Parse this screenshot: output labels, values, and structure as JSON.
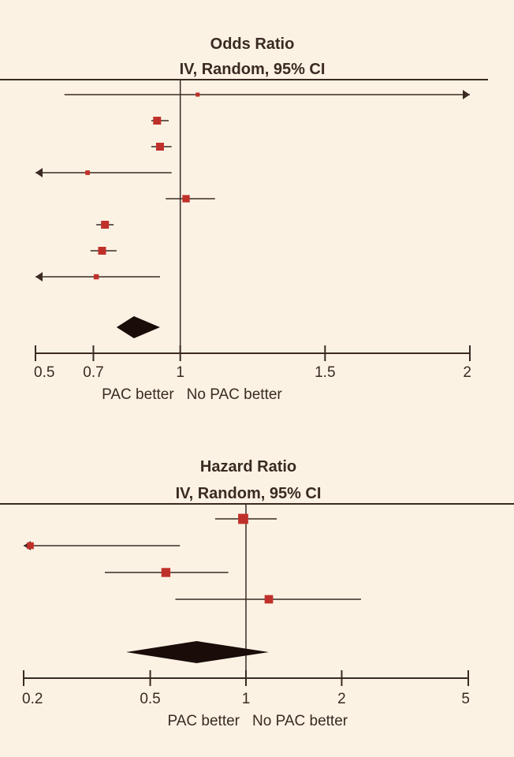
{
  "colors": {
    "background": "#fbf2e4",
    "ink": "#3a2a22",
    "marker": "#c0302a",
    "diamond": "#1a0c08"
  },
  "chart_data": [
    {
      "type": "forest",
      "scale": "linear",
      "title": "Odds Ratio",
      "subtitle": "IV, Random, 95% CI",
      "xlabel_left": "PAC better",
      "xlabel_right": "No PAC better",
      "xlim": [
        0.5,
        2
      ],
      "ticks": [
        0.5,
        0.7,
        1,
        1.5,
        2
      ],
      "tick_labels": [
        "0.5",
        "0.7",
        "1",
        "1.5",
        "2"
      ],
      "studies": [
        {
          "estimate": 1.06,
          "lower": 0.6,
          "upper": 2.0,
          "arrow_left": false,
          "arrow_right": true,
          "weight": 0.3
        },
        {
          "estimate": 0.92,
          "lower": 0.9,
          "upper": 0.96,
          "arrow_left": false,
          "arrow_right": false,
          "weight": 1.0
        },
        {
          "estimate": 0.93,
          "lower": 0.9,
          "upper": 0.97,
          "arrow_left": false,
          "arrow_right": false,
          "weight": 1.0
        },
        {
          "estimate": 0.68,
          "lower": 0.5,
          "upper": 0.97,
          "arrow_left": true,
          "arrow_right": false,
          "weight": 0.4
        },
        {
          "estimate": 1.02,
          "lower": 0.95,
          "upper": 1.12,
          "arrow_left": false,
          "arrow_right": false,
          "weight": 0.9
        },
        {
          "estimate": 0.74,
          "lower": 0.71,
          "upper": 0.77,
          "arrow_left": false,
          "arrow_right": false,
          "weight": 1.0
        },
        {
          "estimate": 0.73,
          "lower": 0.69,
          "upper": 0.78,
          "arrow_left": false,
          "arrow_right": false,
          "weight": 1.0
        },
        {
          "estimate": 0.71,
          "lower": 0.5,
          "upper": 0.93,
          "arrow_left": true,
          "arrow_right": false,
          "weight": 0.5
        }
      ],
      "pooled": {
        "estimate": 0.84,
        "lower": 0.78,
        "upper": 0.93
      }
    },
    {
      "type": "forest",
      "scale": "log",
      "title": "Hazard Ratio",
      "subtitle": "IV, Random, 95% CI",
      "xlabel_left": "PAC better",
      "xlabel_right": "No PAC better",
      "xlim": [
        0.2,
        5
      ],
      "ticks": [
        0.2,
        0.5,
        1,
        2,
        5
      ],
      "tick_labels": [
        "0.2",
        "0.5",
        "1",
        "2",
        "5"
      ],
      "studies": [
        {
          "estimate": 0.98,
          "lower": 0.8,
          "upper": 1.25,
          "arrow_left": false,
          "arrow_right": false,
          "weight": 1.4
        },
        {
          "estimate": 0.21,
          "lower": 0.2,
          "upper": 0.62,
          "arrow_left": true,
          "arrow_right": false,
          "weight": 0.8
        },
        {
          "estimate": 0.56,
          "lower": 0.36,
          "upper": 0.88,
          "arrow_left": false,
          "arrow_right": false,
          "weight": 1.2
        },
        {
          "estimate": 1.18,
          "lower": 0.6,
          "upper": 2.3,
          "arrow_left": false,
          "arrow_right": false,
          "weight": 1.1
        }
      ],
      "pooled": {
        "estimate": 0.7,
        "lower": 0.42,
        "upper": 1.18
      }
    }
  ]
}
